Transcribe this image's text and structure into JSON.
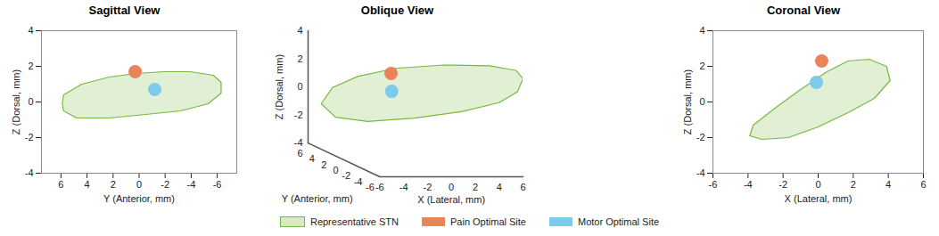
{
  "chart_data": [
    {
      "type": "scatter",
      "title": "Sagittal View",
      "x_label": "Y (Anterior, mm)",
      "y_label": "Z (Dorsal, mm)",
      "xlim": [
        7.5,
        -7.5
      ],
      "xticks": [
        6,
        4,
        2,
        0,
        -2,
        -4,
        -6
      ],
      "ylim": [
        -4,
        4
      ],
      "yticks": [
        -4,
        -2,
        0,
        2,
        4
      ],
      "legend": "bottom",
      "series": [
        {
          "name": "Representative STN",
          "type": "line",
          "color": "#77b83f",
          "x": [
            5.9,
            5.8,
            4.4,
            2.3,
            0.2,
            -1.9,
            -3.9,
            -5.7,
            -6.3,
            -6.3,
            -5.3,
            -3.2,
            -0.5,
            2.3,
            4.8,
            5.8
          ],
          "y": [
            -0.1,
            0.4,
            1.0,
            1.4,
            1.6,
            1.7,
            1.7,
            1.5,
            1.1,
            0.5,
            -0.1,
            -0.5,
            -0.7,
            -0.9,
            -0.9,
            -0.5
          ]
        },
        {
          "name": "Pain Optimal Site",
          "type": "scatter",
          "marker": "circle",
          "color": "#e8835a",
          "x": [
            0.3
          ],
          "y": [
            1.7
          ]
        },
        {
          "name": "Motor Optimal Site",
          "type": "scatter",
          "marker": "circle",
          "color": "#7ccbea",
          "x": [
            -1.2
          ],
          "y": [
            0.7
          ]
        }
      ]
    },
    {
      "type": "scatter3d",
      "title": "Oblique View",
      "x_label": "X (Lateral, mm)",
      "y_label": "Y (Anterior, mm)",
      "z_label": "Z (Dorsal, mm)",
      "xlim": [
        -6,
        6
      ],
      "xticks": [
        -6,
        -4,
        -2,
        0,
        2,
        4,
        6
      ],
      "ylim": [
        6,
        -6
      ],
      "yticks": [
        6,
        4,
        2,
        0,
        -2,
        -4,
        -6
      ],
      "zlim": [
        -4,
        4
      ],
      "zticks": [
        -4,
        -2,
        0,
        2,
        4
      ],
      "legend": "bottom",
      "series": [
        {
          "name": "Representative STN",
          "type": "line",
          "color": "#77b83f",
          "x": [
            -4.9,
            -4.3,
            -2.9,
            -0.9,
            1.7,
            4.2,
            5.6,
            6.0,
            5.7,
            4.7,
            2.7,
            0.1,
            -2.4,
            -4.1
          ],
          "y": [
            6.0,
            5.3,
            3.8,
            1.6,
            -1.2,
            -4.0,
            -5.6,
            -6.0,
            -5.7,
            -4.6,
            -2.3,
            0.4,
            3.2,
            5.2
          ],
          "z": [
            -1.2,
            0.1,
            1.2,
            2.2,
            3.0,
            3.5,
            3.5,
            3.0,
            2.0,
            1.0,
            -0.1,
            -1.1,
            -1.9,
            -2.0
          ]
        },
        {
          "name": "Pain Optimal Site",
          "type": "scatter",
          "marker": "circle",
          "color": "#e8835a",
          "x": [
            -1.9
          ],
          "y": [
            0.3
          ],
          "z": [
            2.1
          ]
        },
        {
          "name": "Motor Optimal Site",
          "type": "scatter",
          "marker": "circle",
          "color": "#7ccbea",
          "x": [
            -2.3
          ],
          "y": [
            -0.6
          ],
          "z": [
            1.0
          ]
        }
      ]
    },
    {
      "type": "scatter",
      "title": "Coronal View",
      "x_label": "X (Lateral, mm)",
      "y_label": "Z (Dorsal, mm)",
      "xlim": [
        -6,
        6
      ],
      "xticks": [
        -6,
        -4,
        -2,
        0,
        2,
        4,
        6
      ],
      "ylim": [
        -4,
        4
      ],
      "yticks": [
        -4,
        -2,
        0,
        2,
        4
      ],
      "legend": "bottom",
      "series": [
        {
          "name": "Representative STN",
          "type": "line",
          "color": "#77b83f",
          "x": [
            -3.9,
            -3.7,
            -2.4,
            -1.0,
            0.5,
            1.7,
            2.9,
            3.9,
            4.1,
            3.2,
            1.7,
            0.0,
            -1.7,
            -3.2
          ],
          "y": [
            -1.9,
            -1.3,
            -0.3,
            0.7,
            1.7,
            2.3,
            2.4,
            2.0,
            1.2,
            0.2,
            -0.6,
            -1.4,
            -2.0,
            -2.1
          ]
        },
        {
          "name": "Pain Optimal Site",
          "type": "scatter",
          "marker": "circle",
          "color": "#e8835a",
          "x": [
            0.2
          ],
          "y": [
            2.3
          ]
        },
        {
          "name": "Motor Optimal Site",
          "type": "scatter",
          "marker": "circle",
          "color": "#7ccbea",
          "x": [
            -0.1
          ],
          "y": [
            1.1
          ]
        }
      ]
    }
  ]
}
